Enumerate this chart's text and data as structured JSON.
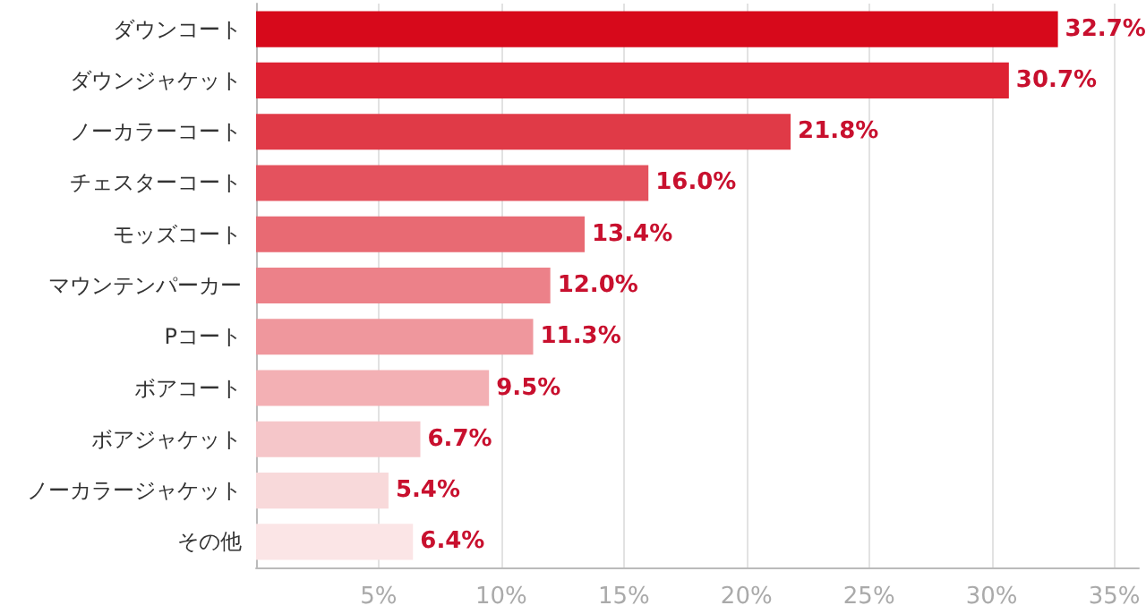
{
  "chart_data": {
    "type": "bar",
    "orientation": "horizontal",
    "categories": [
      "ダウンコート",
      "ダウンジャケット",
      "ノーカラーコート",
      "チェスターコート",
      "モッズコート",
      "マウンテンパーカー",
      "Pコート",
      "ボアコート",
      "ボアジャケット",
      "ノーカラージャケット",
      "その他"
    ],
    "values": [
      32.7,
      30.7,
      21.8,
      16.0,
      13.4,
      12.0,
      11.3,
      9.5,
      6.7,
      5.4,
      6.4
    ],
    "value_labels": [
      "32.7%",
      "30.7%",
      "21.8%",
      "16.0%",
      "13.4%",
      "12.0%",
      "11.3%",
      "9.5%",
      "6.7%",
      "5.4%",
      "6.4%"
    ],
    "colors": [
      "#d7091b",
      "#de2232",
      "#e03a47",
      "#e4525e",
      "#e86a73",
      "#ec8189",
      "#ef979d",
      "#f3b0b4",
      "#f5c6c9",
      "#f8d9da",
      "#fbe5e6"
    ],
    "xlim": [
      0,
      36
    ],
    "xticks": [
      {
        "value": 5,
        "label": "5%"
      },
      {
        "value": 10,
        "label": "10%"
      },
      {
        "value": 15,
        "label": "15%"
      },
      {
        "value": 20,
        "label": "20%"
      },
      {
        "value": 25,
        "label": "25%"
      },
      {
        "value": 30,
        "label": "30%"
      },
      {
        "value": 35,
        "label": "35%"
      }
    ],
    "grid": "x"
  }
}
